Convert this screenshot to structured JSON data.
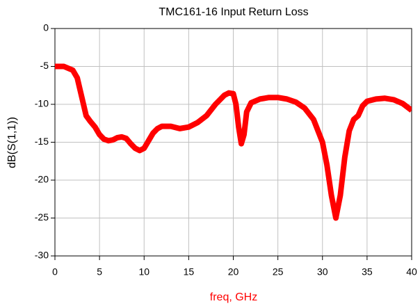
{
  "chart_data": {
    "type": "line",
    "title": "TMC161-16 Input Return Loss",
    "x_label": "freq, GHz",
    "y_label": "dB(S(1,1))",
    "xlim": [
      0,
      40
    ],
    "xticks": [
      0,
      5,
      10,
      15,
      20,
      25,
      30,
      35,
      40
    ],
    "ylim": [
      -30,
      0
    ],
    "yticks": [
      -30,
      -25,
      -20,
      -15,
      -10,
      -5,
      0
    ],
    "grid": true,
    "series": [
      {
        "name": "dB(S(1,1))",
        "color": "#ff0000",
        "x": [
          0,
          1,
          2,
          2.5,
          3,
          3.5,
          4,
          4.5,
          5,
          5.5,
          6,
          6.5,
          7,
          7.5,
          8,
          8.5,
          9,
          9.5,
          10,
          10.5,
          11,
          11.5,
          12,
          13,
          14,
          15,
          16,
          17,
          18,
          19,
          19.5,
          20,
          20.3,
          20.6,
          20.9,
          21.2,
          21.5,
          22,
          23,
          24,
          25,
          26,
          27,
          28,
          29,
          30,
          30.5,
          31,
          31.5,
          32,
          32.5,
          33,
          33.5,
          34,
          34.5,
          35,
          36,
          37,
          38,
          39,
          40
        ],
        "values": [
          -5,
          -5,
          -5.5,
          -6.5,
          -9,
          -11.5,
          -12.3,
          -13,
          -14,
          -14.6,
          -14.8,
          -14.7,
          -14.4,
          -14.3,
          -14.5,
          -15.2,
          -15.8,
          -16.1,
          -15.8,
          -14.8,
          -13.8,
          -13.2,
          -12.9,
          -12.9,
          -13.2,
          -13,
          -12.4,
          -11.5,
          -10,
          -8.8,
          -8.5,
          -8.6,
          -10,
          -13,
          -15.2,
          -14,
          -11,
          -9.8,
          -9.3,
          -9.1,
          -9.1,
          -9.3,
          -9.7,
          -10.5,
          -12,
          -15,
          -18,
          -22,
          -25,
          -22,
          -17,
          -13.5,
          -12,
          -11.5,
          -10.2,
          -9.6,
          -9.3,
          -9.2,
          -9.4,
          -9.9,
          -10.8
        ]
      }
    ]
  }
}
